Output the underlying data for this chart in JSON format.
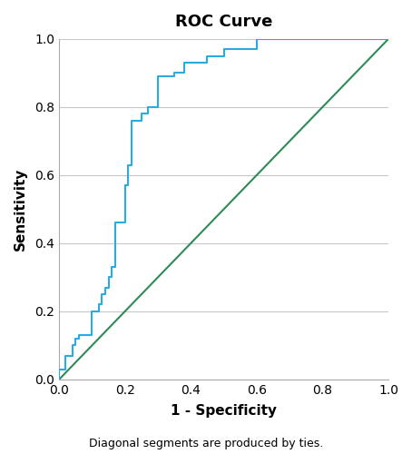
{
  "title": "ROC Curve",
  "xlabel": "1 - Specificity",
  "ylabel": "Sensitivity",
  "footnote": "Diagonal segments are produced by ties.",
  "roc_points_x": [
    0.0,
    0.0,
    0.02,
    0.02,
    0.04,
    0.04,
    0.05,
    0.05,
    0.06,
    0.06,
    0.1,
    0.1,
    0.12,
    0.12,
    0.13,
    0.13,
    0.14,
    0.14,
    0.15,
    0.15,
    0.16,
    0.16,
    0.17,
    0.17,
    0.2,
    0.2,
    0.21,
    0.21,
    0.22,
    0.22,
    0.25,
    0.25,
    0.27,
    0.27,
    0.3,
    0.3,
    0.35,
    0.35,
    0.38,
    0.38,
    0.45,
    0.45,
    0.5,
    0.5,
    0.6,
    0.6,
    0.78,
    0.78,
    1.0,
    1.0
  ],
  "roc_points_y": [
    0.0,
    0.03,
    0.03,
    0.07,
    0.07,
    0.1,
    0.1,
    0.12,
    0.12,
    0.13,
    0.13,
    0.2,
    0.2,
    0.22,
    0.22,
    0.25,
    0.25,
    0.27,
    0.27,
    0.3,
    0.3,
    0.33,
    0.33,
    0.46,
    0.46,
    0.57,
    0.57,
    0.63,
    0.63,
    0.76,
    0.76,
    0.78,
    0.78,
    0.8,
    0.8,
    0.89,
    0.89,
    0.9,
    0.9,
    0.93,
    0.93,
    0.95,
    0.95,
    0.97,
    0.97,
    1.0,
    1.0,
    1.0,
    1.0,
    1.0
  ],
  "roc_color": "#29ABE2",
  "diagonal_color": "#2E8B57",
  "background_color": "#FFFFFF",
  "grid_color": "#C8C8C8",
  "xlim": [
    0.0,
    1.0
  ],
  "ylim": [
    0.0,
    1.0
  ],
  "xticks": [
    0.0,
    0.2,
    0.4,
    0.6,
    0.8,
    1.0
  ],
  "yticks": [
    0.0,
    0.2,
    0.4,
    0.6,
    0.8,
    1.0
  ],
  "title_fontsize": 13,
  "label_fontsize": 11,
  "tick_fontsize": 10,
  "footnote_fontsize": 9
}
